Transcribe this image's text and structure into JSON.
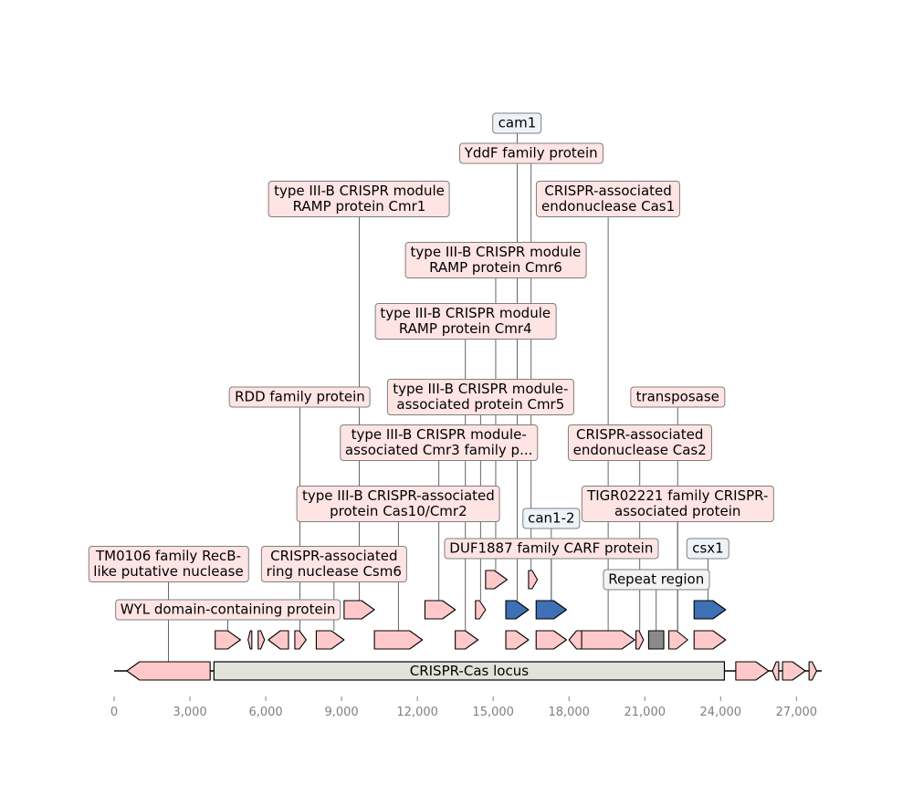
{
  "diagram": {
    "type": "gene-map",
    "axis": {
      "min": 0,
      "max": 28000,
      "ticks": [
        0,
        3000,
        6000,
        9000,
        12000,
        15000,
        18000,
        21000,
        24000,
        27000
      ],
      "tick_labels": [
        "0",
        "3,000",
        "6,000",
        "9,000",
        "12,000",
        "15,000",
        "18,000",
        "21,000",
        "24,000",
        "27,000"
      ]
    },
    "colors": {
      "pink": "#ffc9c9",
      "blue": "#3f6fb5",
      "gray": "#8a8a8a",
      "region": "#e2e2dc",
      "label_pink": "#ffe4e4",
      "label_blue": "#eef3fa"
    },
    "region": {
      "label": "CRISPR-Cas locus",
      "start": 3950,
      "end": 24150
    },
    "features": [
      {
        "start": 500,
        "end": 3800,
        "strand": -1,
        "row": 0,
        "color": "pink"
      },
      {
        "start": 24600,
        "end": 25900,
        "strand": 1,
        "row": 0,
        "color": "pink"
      },
      {
        "start": 26050,
        "end": 26300,
        "strand": -1,
        "row": 0,
        "color": "pink"
      },
      {
        "start": 26450,
        "end": 27350,
        "strand": 1,
        "row": 0,
        "color": "pink"
      },
      {
        "start": 27500,
        "end": 27800,
        "strand": 1,
        "row": 0,
        "color": "pink"
      },
      {
        "start": 4000,
        "end": 5000,
        "strand": 1,
        "row": 1,
        "color": "pink"
      },
      {
        "start": 5300,
        "end": 5450,
        "strand": -1,
        "row": 1,
        "color": "pink"
      },
      {
        "start": 5700,
        "end": 5950,
        "strand": 1,
        "row": 1,
        "color": "pink"
      },
      {
        "start": 6100,
        "end": 6900,
        "strand": -1,
        "row": 1,
        "color": "pink"
      },
      {
        "start": 7150,
        "end": 7600,
        "strand": 1,
        "row": 1,
        "color": "pink"
      },
      {
        "start": 8000,
        "end": 9100,
        "strand": 1,
        "row": 1,
        "color": "pink"
      },
      {
        "start": 10300,
        "end": 12200,
        "strand": 1,
        "row": 1,
        "color": "pink"
      },
      {
        "start": 13500,
        "end": 14400,
        "strand": 1,
        "row": 1,
        "color": "pink"
      },
      {
        "start": 15500,
        "end": 16400,
        "strand": 1,
        "row": 1,
        "color": "pink"
      },
      {
        "start": 16700,
        "end": 17900,
        "strand": 1,
        "row": 1,
        "color": "pink"
      },
      {
        "start": 18000,
        "end": 18500,
        "strand": -1,
        "row": 1,
        "color": "pink"
      },
      {
        "start": 18500,
        "end": 20600,
        "strand": 1,
        "row": 1,
        "color": "pink"
      },
      {
        "start": 20650,
        "end": 20950,
        "strand": 1,
        "row": 1,
        "color": "pink"
      },
      {
        "start": 21150,
        "end": 21750,
        "strand": 0,
        "row": 1,
        "color": "gray"
      },
      {
        "start": 21950,
        "end": 22700,
        "strand": 1,
        "row": 1,
        "color": "pink"
      },
      {
        "start": 22950,
        "end": 24200,
        "strand": 1,
        "row": 1,
        "color": "pink"
      },
      {
        "start": 9100,
        "end": 10300,
        "strand": 1,
        "row": 2,
        "color": "pink"
      },
      {
        "start": 12300,
        "end": 13500,
        "strand": 1,
        "row": 2,
        "color": "pink"
      },
      {
        "start": 14300,
        "end": 14700,
        "strand": 1,
        "row": 2,
        "color": "blue_no"
      },
      {
        "start": 15500,
        "end": 16400,
        "strand": 1,
        "row": 2,
        "color": "blue"
      },
      {
        "start": 16700,
        "end": 17900,
        "strand": 1,
        "row": 2,
        "color": "blue"
      },
      {
        "start": 22950,
        "end": 24200,
        "strand": 1,
        "row": 2,
        "color": "blue"
      },
      {
        "start": 14700,
        "end": 15550,
        "strand": 1,
        "row": 3,
        "color": "pink"
      },
      {
        "start": 16400,
        "end": 16750,
        "strand": 1,
        "row": 3,
        "color": "pink"
      }
    ],
    "annotations": [
      {
        "lines": [
          "TM0106 family RecB-",
          "like putative nuclease"
        ],
        "pos": 2150,
        "label_x": 2150,
        "level": 5,
        "style": "pink"
      },
      {
        "lines": [
          "WYL domain-containing protein"
        ],
        "pos": 4500,
        "label_x": 4500,
        "level": 6,
        "style": "pink"
      },
      {
        "lines": [
          "CRISPR-associated",
          "ring nuclease Csm6"
        ],
        "pos": 8700,
        "label_x": 8700,
        "level": 5,
        "style": "pink"
      },
      {
        "lines": [
          "RDD family protein"
        ],
        "pos": 7350,
        "label_x": 7350,
        "level": 1,
        "style": "pink"
      },
      {
        "lines": [
          "type III-B CRISPR-associated",
          "protein Cas10/Cmr2"
        ],
        "pos": 11250,
        "label_x": 11250,
        "level": 3,
        "style": "pink"
      },
      {
        "lines": [
          "type III-B CRISPR module-",
          "associated Cmr3 family p..."
        ],
        "pos": 12850,
        "label_x": 12850,
        "level": 2,
        "style": "pink"
      },
      {
        "lines": [
          "type III-B CRISPR module",
          "RAMP protein Cmr1"
        ],
        "pos": 9700,
        "label_x": 9700,
        "level": -1,
        "style": "pink"
      },
      {
        "lines": [
          "type III-B CRISPR module",
          "RAMP protein Cmr4"
        ],
        "pos": 13900,
        "label_x": 13900,
        "level": 0,
        "style": "pink"
      },
      {
        "lines": [
          "type III-B CRISPR module-",
          "associated protein Cmr5"
        ],
        "pos": 14500,
        "label_x": 14500,
        "level": 1,
        "style": "pink"
      },
      {
        "lines": [
          "type III-B CRISPR module",
          "RAMP protein Cmr6"
        ],
        "pos": 15100,
        "label_x": 15100,
        "level": -0.5,
        "style": "pink"
      },
      {
        "lines": [
          "cam1"
        ],
        "pos": 15950,
        "label_x": 15950,
        "level": -3,
        "style": "blue"
      },
      {
        "lines": [
          "YddF family protein"
        ],
        "pos": 16500,
        "label_x": 16500,
        "level": -2,
        "style": "pink"
      },
      {
        "lines": [
          "can1-2"
        ],
        "pos": 17300,
        "label_x": 17300,
        "level": 4,
        "style": "blue"
      },
      {
        "lines": [
          "DUF1887 family CARF protein"
        ],
        "pos": 17300,
        "label_x": 17300,
        "level": 4.5,
        "style": "pink"
      },
      {
        "lines": [
          "CRISPR-associated",
          "endonuclease Cas1"
        ],
        "pos": 19550,
        "label_x": 19550,
        "level": -1,
        "style": "pink"
      },
      {
        "lines": [
          "CRISPR-associated",
          "endonuclease Cas2"
        ],
        "pos": 20800,
        "label_x": 20800,
        "level": 2,
        "style": "pink"
      },
      {
        "lines": [
          "Repeat region"
        ],
        "pos": 21450,
        "label_x": 21450,
        "level": 5.5,
        "style": "gray"
      },
      {
        "lines": [
          "transposase"
        ],
        "pos": 22300,
        "label_x": 22300,
        "level": 1,
        "style": "pink"
      },
      {
        "lines": [
          "TIGR02221 family CRISPR-",
          "associated protein"
        ],
        "pos": 22300,
        "label_x": 22300,
        "level": 3,
        "style": "pink"
      },
      {
        "lines": [
          "csx1"
        ],
        "pos": 23500,
        "label_x": 23500,
        "level": 4.5,
        "style": "blue"
      }
    ]
  }
}
